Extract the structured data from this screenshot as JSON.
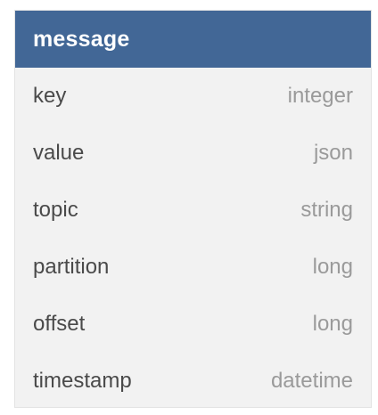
{
  "entity": {
    "title": "message",
    "header_color": "#426796",
    "fields": [
      {
        "name": "key",
        "type": "integer"
      },
      {
        "name": "value",
        "type": "json"
      },
      {
        "name": "topic",
        "type": "string"
      },
      {
        "name": "partition",
        "type": "long"
      },
      {
        "name": "offset",
        "type": "long"
      },
      {
        "name": "timestamp",
        "type": "datetime"
      }
    ]
  }
}
